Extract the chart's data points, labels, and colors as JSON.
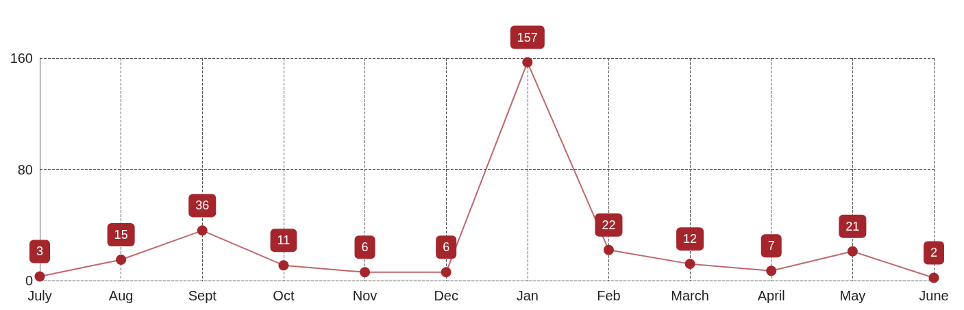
{
  "chart_data": {
    "type": "line",
    "categories": [
      "July",
      "Aug",
      "Sept",
      "Oct",
      "Nov",
      "Dec",
      "Jan",
      "Feb",
      "March",
      "April",
      "May",
      "June"
    ],
    "series": [
      {
        "color": "#a4262c",
        "values": [
          3,
          15,
          36,
          11,
          6,
          6,
          157,
          22,
          12,
          7,
          21,
          2
        ]
      }
    ],
    "ylim": [
      0,
      160
    ],
    "yticks": [
      0,
      80,
      160
    ],
    "grid": true,
    "marker": "circle",
    "line_style": "solid",
    "data_labels": true
  }
}
